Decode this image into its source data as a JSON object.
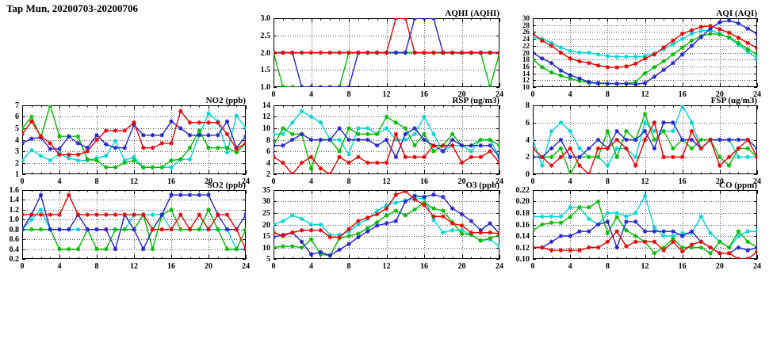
{
  "page_title": "Tap Mun, 20200703-20200706",
  "colors": {
    "red": "#e60000",
    "green": "#00bb00",
    "blue": "#2222cc",
    "cyan": "#00d5d5"
  },
  "x_hours": [
    0,
    1,
    2,
    3,
    4,
    5,
    6,
    7,
    8,
    9,
    10,
    11,
    12,
    13,
    14,
    15,
    16,
    17,
    18,
    19,
    20,
    21,
    22,
    23,
    24
  ],
  "chart_data": [
    {
      "id": "aqhi",
      "type": "line",
      "title": "AQHI (AQHI)",
      "xlim": [
        0,
        24
      ],
      "xticks": [
        "0",
        "4",
        "8",
        "12",
        "16",
        "20",
        "24"
      ],
      "ylim": [
        1.0,
        3.0
      ],
      "yticks": [
        "1.0",
        "1.5",
        "2.0",
        "2.5",
        "3.0"
      ],
      "series": [
        {
          "name": "cyan",
          "values": [
            2,
            2,
            2,
            2,
            2,
            2,
            2,
            2,
            2,
            2,
            2,
            2,
            2,
            2,
            2,
            2,
            2,
            2,
            2,
            2,
            2,
            2,
            2,
            2,
            2
          ]
        },
        {
          "name": "green",
          "values": [
            2,
            1,
            1,
            1,
            1,
            1,
            1,
            1,
            2,
            2,
            2,
            2,
            2,
            2,
            2,
            2,
            2,
            2,
            2,
            2,
            2,
            2,
            2,
            1,
            2
          ]
        },
        {
          "name": "blue",
          "values": [
            2,
            2,
            2,
            1,
            1,
            1,
            1,
            1,
            1,
            2,
            2,
            2,
            2,
            2,
            2,
            3,
            3,
            3,
            2,
            2,
            2,
            2,
            2,
            2,
            2
          ]
        },
        {
          "name": "red",
          "values": [
            2,
            2,
            2,
            2,
            2,
            2,
            2,
            2,
            2,
            2,
            2,
            2,
            2,
            3,
            3,
            2,
            2,
            2,
            2,
            2,
            2,
            2,
            2,
            2,
            2
          ]
        }
      ]
    },
    {
      "id": "aqi",
      "type": "line",
      "title": "AQI (AQI)",
      "xlim": [
        0,
        24
      ],
      "xticks": [
        "0",
        "4",
        "8",
        "12",
        "16",
        "20",
        "24"
      ],
      "ylim": [
        10,
        30
      ],
      "yticks": [
        "10",
        "12",
        "14",
        "16",
        "18",
        "20",
        "22",
        "24",
        "26",
        "28",
        "30"
      ],
      "series": [
        {
          "name": "cyan",
          "values": [
            24.5,
            24,
            22.8,
            21.5,
            20.5,
            20,
            20,
            19.5,
            19,
            18.8,
            18.8,
            18.8,
            19,
            19.8,
            21,
            22.5,
            24,
            25.5,
            26.3,
            26.5,
            25.5,
            24.3,
            22.3,
            20.3,
            18.3
          ]
        },
        {
          "name": "green",
          "values": [
            18,
            15.8,
            14.3,
            13.3,
            12.5,
            11.8,
            11.3,
            11,
            11,
            11,
            11,
            11.5,
            14,
            15.8,
            17.5,
            19.5,
            21.5,
            23.5,
            24.8,
            25.5,
            25.3,
            24.5,
            22.8,
            21,
            19.5
          ]
        },
        {
          "name": "blue",
          "values": [
            20,
            18.3,
            17,
            14.8,
            13.5,
            12.5,
            11.5,
            11.2,
            11,
            11,
            11,
            10.8,
            11.2,
            13,
            15,
            17,
            19.5,
            22,
            24.5,
            27,
            28.8,
            29.3,
            28.5,
            27,
            25.5
          ]
        },
        {
          "name": "red",
          "values": [
            25.5,
            23.5,
            22,
            20,
            18.3,
            17.5,
            17,
            16.3,
            15.8,
            15.7,
            16,
            16.8,
            18.3,
            19.5,
            21.5,
            23.5,
            25.5,
            26.5,
            27.5,
            27.8,
            26.8,
            25.8,
            24.3,
            22.8,
            21.3
          ]
        }
      ]
    },
    {
      "id": "no2",
      "type": "line",
      "title": "NO2 (ppb)",
      "xlim": [
        0,
        24
      ],
      "xticks": [
        "0",
        "4",
        "8",
        "12",
        "16",
        "20",
        "24"
      ],
      "ylim": [
        1,
        7
      ],
      "yticks": [
        "1",
        "2",
        "3",
        "4",
        "5",
        "6",
        "7"
      ],
      "series": [
        {
          "name": "cyan",
          "values": [
            2.2,
            3.1,
            2.6,
            2.2,
            2.8,
            2.4,
            2.2,
            2.2,
            2.4,
            2.6,
            3.9,
            2.2,
            2.5,
            1.6,
            1.6,
            1.6,
            1.6,
            2.3,
            2.3,
            4.4,
            6.3,
            5.6,
            2.9,
            6.1,
            5.0
          ]
        },
        {
          "name": "green",
          "values": [
            5,
            6,
            4.2,
            7,
            4.3,
            4.3,
            4.3,
            2.3,
            2.2,
            1.6,
            1.6,
            2.0,
            2.2,
            1.6,
            1.6,
            1.6,
            2.2,
            2.3,
            3.3,
            4.8,
            3.3,
            3.3,
            3.3,
            2.9,
            3.7
          ]
        },
        {
          "name": "blue",
          "values": [
            3.7,
            4.1,
            4.2,
            3.2,
            3.2,
            4.3,
            3.7,
            3.3,
            4.4,
            3.6,
            3.3,
            3.3,
            5.3,
            4.4,
            4.4,
            4.4,
            5.6,
            5.0,
            4.4,
            4.4,
            4.4,
            4.4,
            5.6,
            3.3,
            4.3
          ]
        },
        {
          "name": "red",
          "values": [
            4.5,
            5.6,
            4.3,
            3.7,
            2.7,
            2.7,
            2.7,
            3.0,
            4.0,
            4.8,
            4.8,
            4.8,
            5.5,
            3.3,
            3.3,
            3.7,
            3.7,
            6.5,
            5.5,
            5.5,
            5.5,
            5.5,
            4.5,
            3.2,
            3.7
          ]
        }
      ]
    },
    {
      "id": "rsp",
      "type": "line",
      "title": "RSP (ug/m3)",
      "xlim": [
        0,
        24
      ],
      "xticks": [
        "0",
        "4",
        "8",
        "12",
        "16",
        "20",
        "24"
      ],
      "ylim": [
        2,
        14
      ],
      "yticks": [
        "2",
        "4",
        "6",
        "8",
        "10",
        "12",
        "14"
      ],
      "series": [
        {
          "name": "cyan",
          "values": [
            9,
            9,
            11,
            13,
            12,
            11,
            8,
            8,
            5.5,
            10,
            10,
            9,
            10,
            8,
            8,
            9,
            12,
            9,
            6,
            7,
            7,
            6,
            8,
            8,
            5
          ]
        },
        {
          "name": "green",
          "values": [
            7,
            10,
            9,
            9,
            3,
            8,
            8,
            6,
            10,
            9,
            9,
            9,
            12,
            11,
            10,
            7,
            9,
            6,
            7,
            9,
            7,
            7,
            8,
            8,
            7
          ]
        },
        {
          "name": "blue",
          "values": [
            7,
            7,
            8,
            9,
            8,
            8,
            8,
            10,
            8,
            8,
            8,
            7,
            8,
            5,
            9,
            10,
            8,
            7,
            6,
            8,
            7,
            7,
            7,
            7,
            5
          ]
        },
        {
          "name": "red",
          "values": [
            5,
            4,
            2,
            4,
            5,
            3,
            2,
            5,
            4,
            5,
            4,
            4,
            4,
            9,
            5,
            5,
            5,
            7,
            7,
            7,
            4,
            5,
            5,
            6,
            4
          ]
        }
      ]
    },
    {
      "id": "fsp",
      "type": "line",
      "title": "FSP (ug/m3)",
      "xlim": [
        0,
        24
      ],
      "xticks": [
        "0",
        "4",
        "8",
        "12",
        "16",
        "20",
        "24"
      ],
      "ylim": [
        0,
        8
      ],
      "yticks": [
        "0",
        "2",
        "4",
        "6",
        "8"
      ],
      "series": [
        {
          "name": "cyan",
          "values": [
            4,
            1,
            5,
            6,
            5,
            3,
            2,
            2,
            1,
            3,
            3,
            2,
            6,
            5,
            5,
            5,
            8,
            6,
            3,
            4,
            4,
            4,
            2,
            2,
            2
          ]
        },
        {
          "name": "green",
          "values": [
            2,
            2,
            2,
            3,
            0,
            2,
            2,
            2,
            5,
            2,
            5,
            4,
            7,
            4,
            5,
            3,
            4,
            3,
            4,
            4,
            2,
            1,
            3,
            3,
            2
          ]
        },
        {
          "name": "blue",
          "values": [
            2,
            2,
            3,
            4,
            2,
            2,
            3,
            4,
            3,
            5,
            4,
            4,
            5,
            3,
            6,
            6,
            4,
            4,
            3,
            4,
            4,
            4,
            4,
            4,
            3
          ]
        },
        {
          "name": "red",
          "values": [
            3,
            2,
            1,
            2,
            3,
            1,
            0,
            3,
            3,
            4,
            3,
            1,
            4,
            6,
            2,
            2,
            2,
            5,
            3,
            4,
            1,
            2,
            3,
            4,
            2
          ]
        }
      ]
    },
    {
      "id": "so2",
      "type": "line",
      "title": "SO2 (ppb)",
      "xlim": [
        0,
        24
      ],
      "xticks": [
        "0",
        "4",
        "8",
        "12",
        "16",
        "20",
        "24"
      ],
      "ylim": [
        0.2,
        1.6
      ],
      "yticks": [
        "0.2",
        "0.4",
        "0.6",
        "0.8",
        "1.0",
        "1.2",
        "1.4",
        "1.6"
      ],
      "series": [
        {
          "name": "cyan",
          "values": [
            0.8,
            1.0,
            1.2,
            0.8,
            0.8,
            0.8,
            0.8,
            0.8,
            0.8,
            0.8,
            0.8,
            0.8,
            1.1,
            1.1,
            1.1,
            1.1,
            0.8,
            0.8,
            0.8,
            0.8,
            0.8,
            0.8,
            0.8,
            0.4,
            0.4
          ]
        },
        {
          "name": "green",
          "values": [
            0.8,
            0.8,
            0.8,
            0.8,
            0.4,
            0.4,
            0.4,
            0.8,
            0.4,
            0.4,
            0.8,
            0.8,
            0.8,
            1.1,
            0.4,
            1.1,
            1.2,
            0.8,
            0.8,
            0.8,
            1.2,
            0.8,
            0.4,
            0.4,
            0.8
          ]
        },
        {
          "name": "blue",
          "values": [
            0.8,
            1.1,
            1.5,
            0.8,
            0.8,
            0.8,
            1.1,
            0.8,
            0.8,
            0.8,
            0.4,
            1.1,
            0.8,
            0.4,
            0.8,
            1.1,
            1.5,
            1.5,
            1.5,
            1.5,
            1.5,
            1.1,
            0.8,
            0.8,
            1.1
          ]
        },
        {
          "name": "red",
          "values": [
            1.1,
            1.1,
            1.1,
            1.1,
            1.1,
            1.5,
            1.1,
            1.1,
            1.1,
            1.1,
            1.1,
            1.1,
            1.1,
            1.1,
            0.8,
            0.8,
            0.8,
            1.1,
            0.8,
            1.1,
            0.8,
            1.1,
            1.1,
            0.8,
            0.4
          ]
        }
      ]
    },
    {
      "id": "o3",
      "type": "line",
      "title": "O3 (ppb)",
      "xlim": [
        0,
        24
      ],
      "xticks": [
        "0",
        "4",
        "8",
        "12",
        "16",
        "20",
        "24"
      ],
      "ylim": [
        5,
        35
      ],
      "yticks": [
        "5",
        "10",
        "15",
        "20",
        "25",
        "30",
        "35"
      ],
      "series": [
        {
          "name": "cyan",
          "values": [
            20,
            21.5,
            24,
            22.5,
            20,
            20,
            15.5,
            15.5,
            17,
            20,
            22.5,
            26,
            28.5,
            29.5,
            30.5,
            31,
            31.5,
            22,
            16.5,
            17.5,
            17.5,
            15.5,
            13,
            13.5,
            10.5
          ]
        },
        {
          "name": "green",
          "values": [
            10,
            10.5,
            10.5,
            10,
            13.5,
            7,
            6.5,
            14,
            15,
            16,
            18.5,
            21,
            24,
            26,
            24,
            26.5,
            29.5,
            27,
            26,
            21,
            16,
            15.5,
            13,
            14,
            15.5
          ]
        },
        {
          "name": "blue",
          "values": [
            14.5,
            15.5,
            16.5,
            12.5,
            7,
            8,
            6.5,
            9,
            11.5,
            14.5,
            17,
            19.5,
            20.5,
            21.5,
            30,
            32.5,
            32,
            33,
            32,
            27,
            24.5,
            21.5,
            17.5,
            20.5,
            16
          ]
        },
        {
          "name": "red",
          "values": [
            16.5,
            15,
            16.5,
            17.5,
            17.5,
            17.5,
            14.5,
            14.5,
            18,
            21.5,
            23,
            24.5,
            27,
            33,
            34.5,
            31,
            28.5,
            23.5,
            23.5,
            20.5,
            19.5,
            16.5,
            16.5,
            16.5,
            16
          ]
        }
      ]
    },
    {
      "id": "co",
      "type": "line",
      "title": "CO (ppm)",
      "xlim": [
        0,
        24
      ],
      "xticks": [
        "0",
        "4",
        "8",
        "12",
        "16",
        "20",
        "24"
      ],
      "ylim": [
        0.1,
        0.22
      ],
      "yticks": [
        "0.10",
        "0.12",
        "0.14",
        "0.16",
        "0.18",
        "0.20",
        "0.22"
      ],
      "series": [
        {
          "name": "cyan",
          "values": [
            0.174,
            0.174,
            0.174,
            0.174,
            0.19,
            0.19,
            0.17,
            0.16,
            0.18,
            0.18,
            0.174,
            0.18,
            0.21,
            0.155,
            0.14,
            0.14,
            0.145,
            0.145,
            0.174,
            0.145,
            0.13,
            0.12,
            0.14,
            0.148,
            0.148
          ]
        },
        {
          "name": "green",
          "values": [
            0.15,
            0.16,
            0.163,
            0.163,
            0.173,
            0.19,
            0.19,
            0.2,
            0.145,
            0.173,
            0.15,
            0.14,
            0.13,
            0.11,
            0.12,
            0.135,
            0.12,
            0.12,
            0.12,
            0.11,
            0.13,
            0.12,
            0.148,
            0.13,
            0.12
          ]
        },
        {
          "name": "blue",
          "values": [
            0.12,
            0.12,
            0.13,
            0.14,
            0.14,
            0.148,
            0.148,
            0.16,
            0.165,
            0.12,
            0.165,
            0.165,
            0.148,
            0.148,
            0.148,
            0.148,
            0.14,
            0.148,
            0.13,
            0.12,
            0.11,
            0.11,
            0.12,
            0.115,
            0.12
          ]
        },
        {
          "name": "red",
          "values": [
            0.12,
            0.12,
            0.115,
            0.115,
            0.115,
            0.115,
            0.12,
            0.12,
            0.13,
            0.148,
            0.122,
            0.13,
            0.13,
            0.13,
            0.115,
            0.13,
            0.113,
            0.125,
            0.13,
            0.12,
            0.11,
            0.11,
            0.1,
            0.1,
            0.113
          ]
        }
      ]
    }
  ]
}
